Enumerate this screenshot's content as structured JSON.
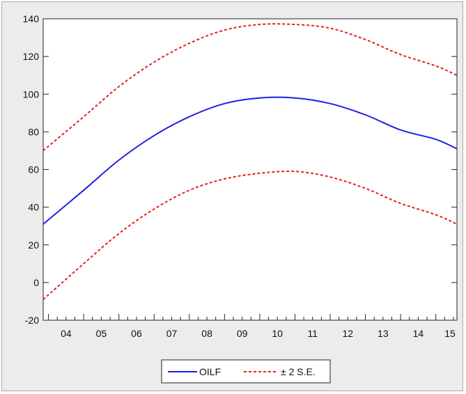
{
  "chart_data": {
    "type": "line",
    "title": "",
    "xlabel": "",
    "ylabel": "",
    "x_tick_labels": [
      "04",
      "05",
      "06",
      "07",
      "08",
      "09",
      "10",
      "11",
      "12",
      "13",
      "14",
      "15"
    ],
    "x_range": [
      2003.85,
      2015.6
    ],
    "ylim": [
      -20,
      140
    ],
    "y_ticks": [
      -20,
      0,
      20,
      40,
      60,
      80,
      100,
      120,
      140
    ],
    "grid": false,
    "legend_position": "bottom-center",
    "series": [
      {
        "name": "OILF",
        "color": "#1f1fe6",
        "style": "solid",
        "x": [
          2003.85,
          2005,
          2006,
          2007,
          2008,
          2009,
          2010,
          2011,
          2012,
          2013,
          2014,
          2015,
          2015.6
        ],
        "y": [
          31,
          49,
          65,
          78,
          88,
          95,
          98,
          98,
          95,
          89,
          81,
          76,
          71
        ]
      },
      {
        "name": "± 2 S.E.",
        "color": "#e61f1f",
        "style": "dashed",
        "x": [
          2003.85,
          2005,
          2006,
          2007,
          2008,
          2009,
          2010,
          2011,
          2012,
          2013,
          2014,
          2015,
          2015.6
        ],
        "y": [
          70,
          88,
          104,
          117,
          127,
          134,
          137,
          137,
          135,
          129,
          121,
          115,
          110
        ]
      },
      {
        "name": "± 2 S.E.",
        "color": "#e61f1f",
        "style": "dashed",
        "x": [
          2003.85,
          2005,
          2006,
          2007,
          2008,
          2009,
          2010,
          2011,
          2012,
          2013,
          2014,
          2015,
          2015.6
        ],
        "y": [
          -9,
          10,
          26,
          39,
          49,
          55,
          58,
          59,
          56,
          50,
          42,
          36,
          31
        ]
      }
    ],
    "legend": [
      {
        "label": "OILF",
        "color": "#1f1fe6",
        "style": "solid"
      },
      {
        "label": "± 2 S.E.",
        "color": "#e61f1f",
        "style": "dashed"
      }
    ]
  }
}
